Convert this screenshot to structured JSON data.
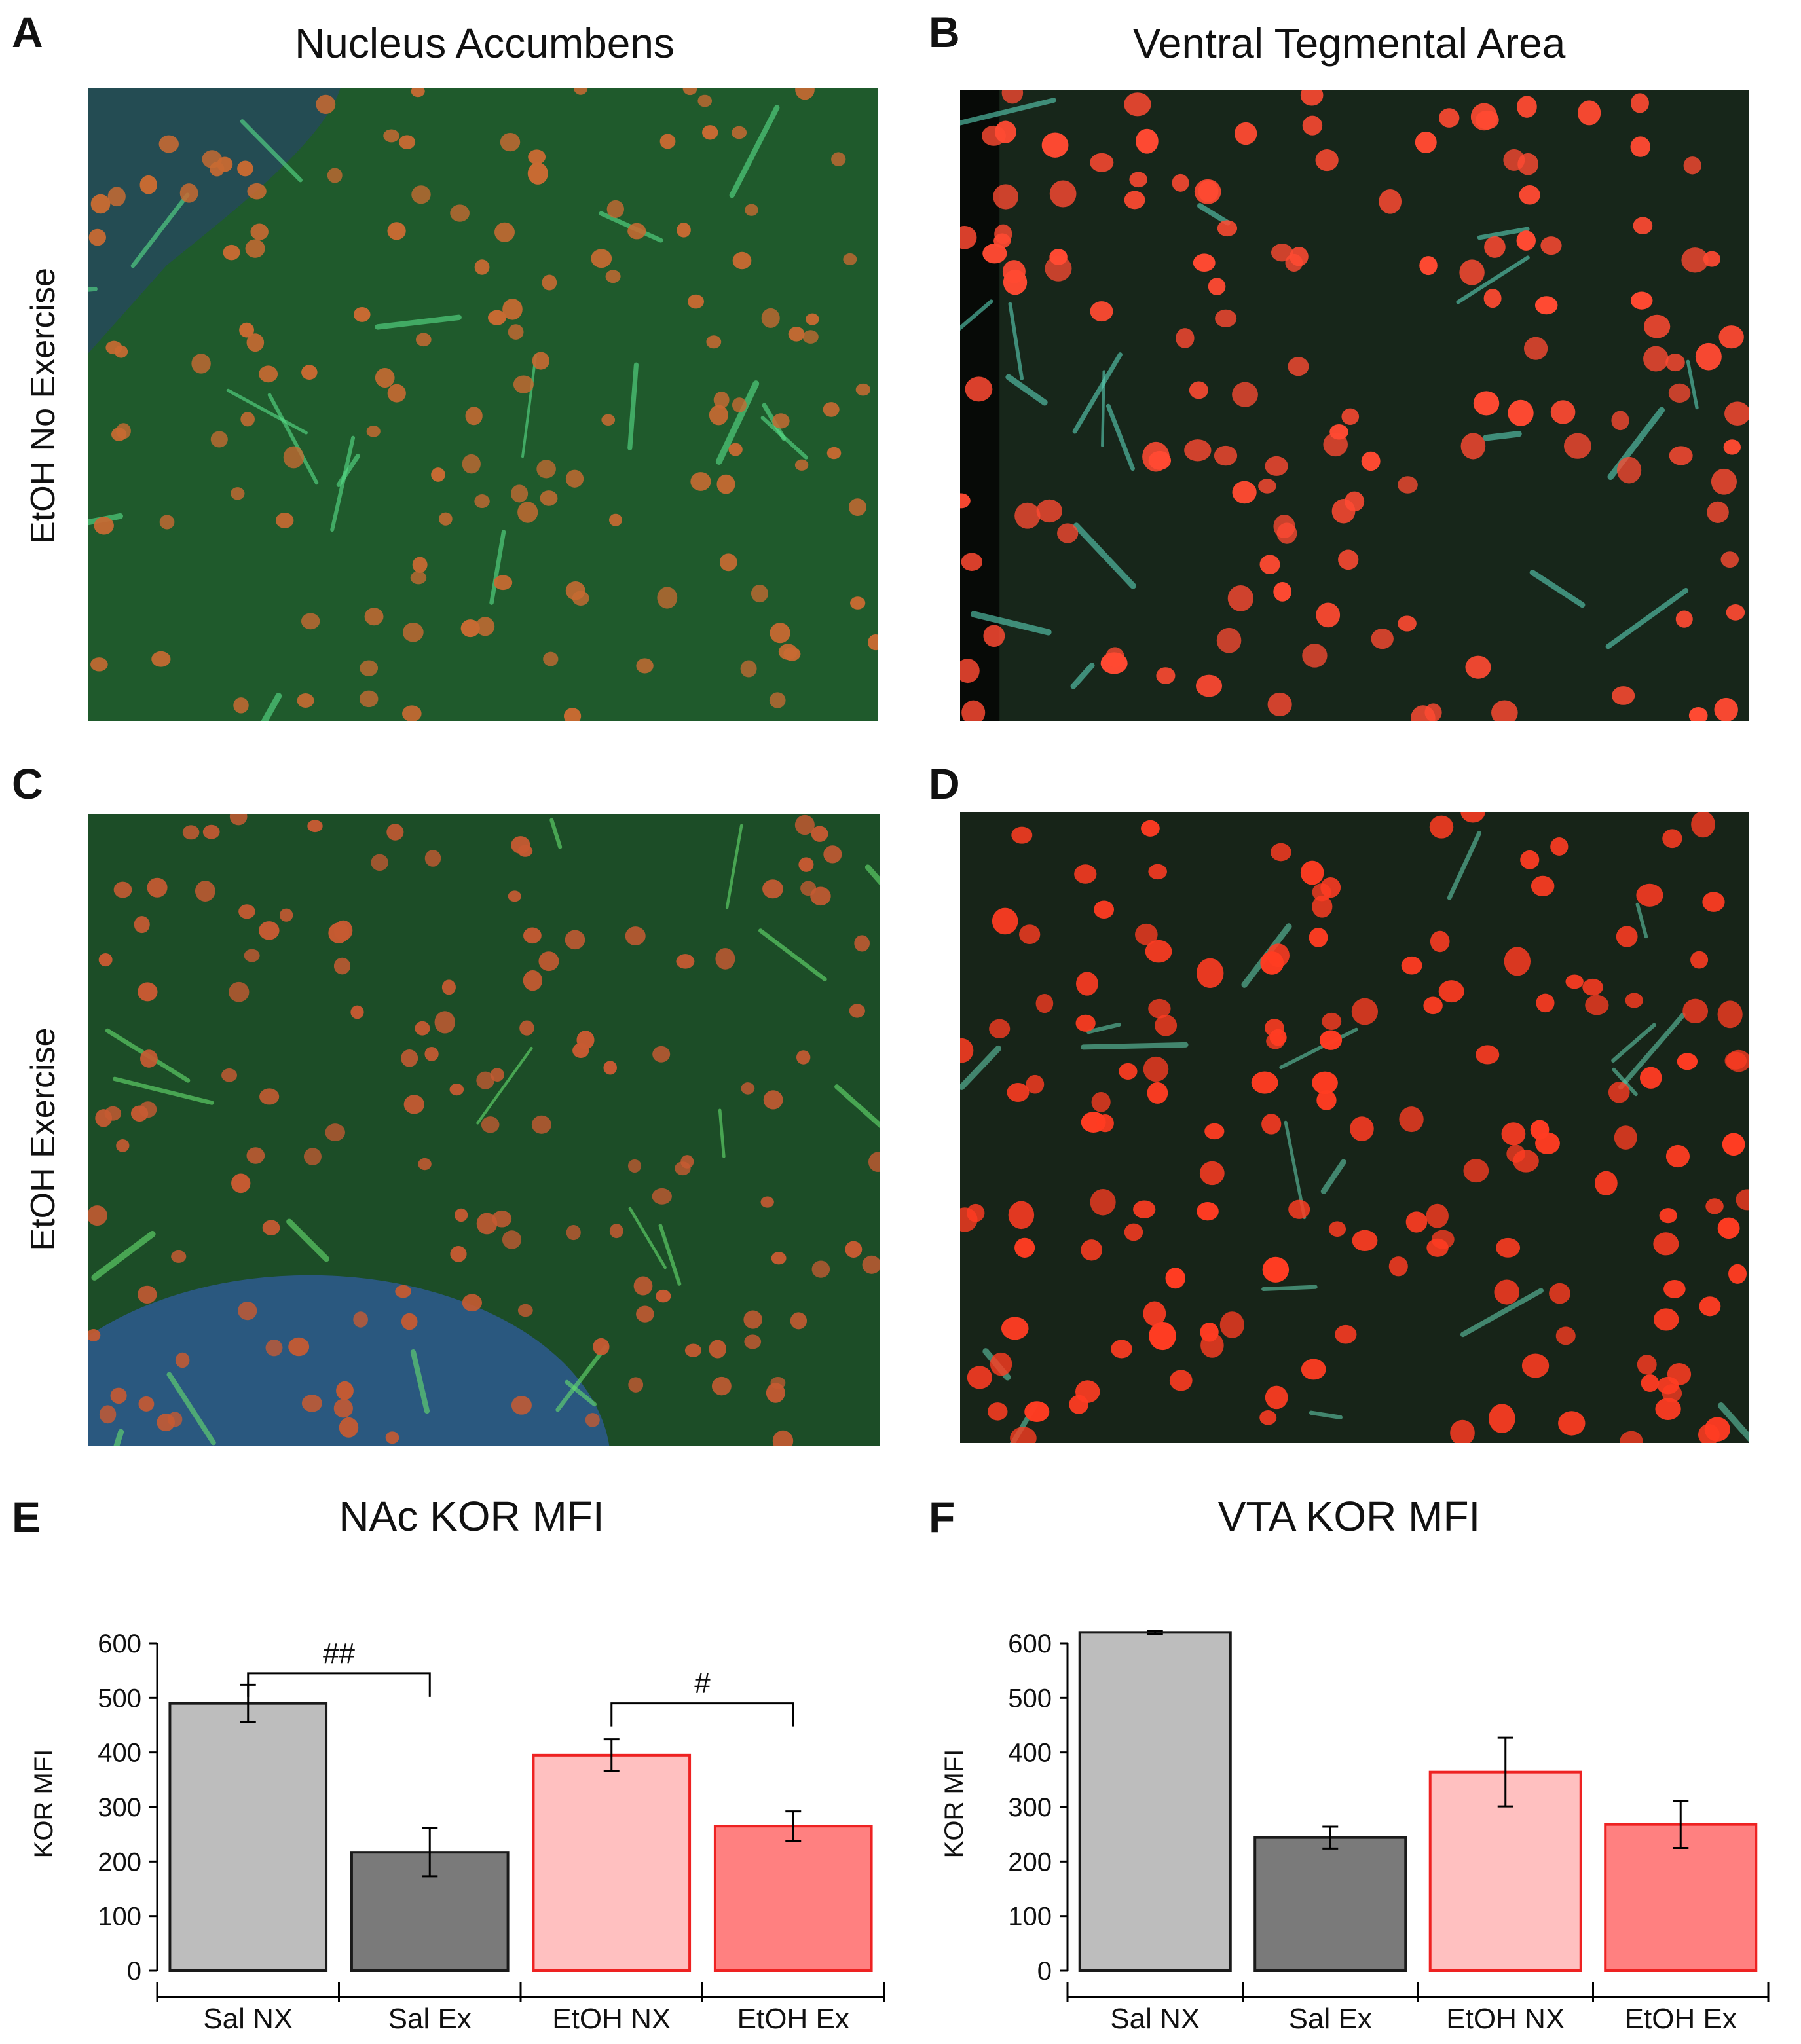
{
  "panels": {
    "A": {
      "letter": "A",
      "title": "Nucleus Accumbens"
    },
    "B": {
      "letter": "B",
      "title": "Ventral Tegmental Area"
    },
    "C": {
      "letter": "C"
    },
    "D": {
      "letter": "D"
    },
    "E": {
      "letter": "E",
      "title": "NAc KOR MFI"
    },
    "F": {
      "letter": "F",
      "title": "VTA KOR MFI"
    }
  },
  "rows": {
    "top": "EtOH No Exercise",
    "bottom": "EtOH Exercise"
  },
  "micrographs": {
    "A": {
      "bg": "#1f5a2c",
      "cell": "#c76a32",
      "accent": "#58e08a",
      "dark": "#264a5a"
    },
    "B": {
      "bg": "#17261a",
      "cell": "#ff4a32",
      "accent": "#5ad2b8",
      "dark": "#050805"
    },
    "C": {
      "bg": "#1c4d27",
      "cell": "#c65a32",
      "accent": "#66e070",
      "dark": "#2c5a8a"
    },
    "D": {
      "bg": "#172418",
      "cell": "#ff3c22",
      "accent": "#60c8a8",
      "dark": "#0a120c"
    }
  },
  "chart_data": [
    {
      "type": "bar",
      "title": "NAc KOR MFI",
      "ylabel": "KOR MFI",
      "ylim": [
        0,
        600
      ],
      "yticks": [
        0,
        100,
        200,
        300,
        400,
        500,
        600
      ],
      "categories": [
        "Sal NX",
        "Sal Ex",
        "EtOH NX",
        "EtOH Ex"
      ],
      "values": [
        490,
        217,
        395,
        265
      ],
      "errors": [
        34,
        44,
        29,
        27
      ],
      "fills": [
        "#bdbdbd",
        "#7a7a7a",
        "#ffc0c0",
        "#ff8080"
      ],
      "strokes": [
        "#1a1a1a",
        "#1a1a1a",
        "#ee2222",
        "#ee2222"
      ],
      "annotations": [
        {
          "label": "##",
          "from": 0,
          "to": 1,
          "level": 545
        },
        {
          "label": "#",
          "from": 2,
          "to": 3,
          "level": 490
        }
      ]
    },
    {
      "type": "bar",
      "title": "VTA KOR MFI",
      "ylabel": "KOR MFI",
      "ylim": [
        0,
        600
      ],
      "yticks": [
        0,
        100,
        200,
        300,
        400,
        500,
        600
      ],
      "categories": [
        "Sal NX",
        "Sal Ex",
        "EtOH NX",
        "EtOH Ex"
      ],
      "values": [
        620,
        244,
        364,
        268
      ],
      "errors": [
        3,
        20,
        63,
        43
      ],
      "fills": [
        "#bdbdbd",
        "#7a7a7a",
        "#ffc0c0",
        "#ff8080"
      ],
      "strokes": [
        "#1a1a1a",
        "#1a1a1a",
        "#ee2222",
        "#ee2222"
      ],
      "annotations": []
    }
  ]
}
